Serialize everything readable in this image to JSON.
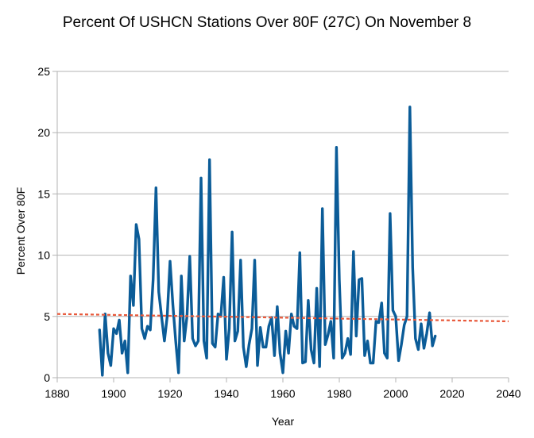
{
  "chart_data": {
    "type": "line",
    "title": "Percent Of USHCN Stations Over 80F (27C) On November 8",
    "xlabel": "Year",
    "ylabel": "Percent Over 80F",
    "xlim": [
      1880,
      2040
    ],
    "ylim": [
      0,
      25
    ],
    "x_ticks": [
      1880,
      1900,
      1920,
      1940,
      1960,
      1980,
      2000,
      2020,
      2040
    ],
    "y_ticks": [
      0,
      5,
      10,
      15,
      20,
      25
    ],
    "grid": "horizontal",
    "legend": "none",
    "series": [
      {
        "color": "#0b5c98",
        "x": [
          1895,
          1896,
          1897,
          1898,
          1899,
          1900,
          1901,
          1902,
          1903,
          1904,
          1905,
          1906,
          1907,
          1908,
          1909,
          1910,
          1911,
          1912,
          1913,
          1914,
          1915,
          1916,
          1917,
          1918,
          1919,
          1920,
          1921,
          1922,
          1923,
          1924,
          1925,
          1926,
          1927,
          1928,
          1929,
          1930,
          1931,
          1932,
          1933,
          1934,
          1935,
          1936,
          1937,
          1938,
          1939,
          1940,
          1941,
          1942,
          1943,
          1944,
          1945,
          1946,
          1947,
          1948,
          1949,
          1950,
          1951,
          1952,
          1953,
          1954,
          1955,
          1956,
          1957,
          1958,
          1959,
          1960,
          1961,
          1962,
          1963,
          1964,
          1965,
          1966,
          1967,
          1968,
          1969,
          1970,
          1971,
          1972,
          1973,
          1974,
          1975,
          1976,
          1977,
          1978,
          1979,
          1980,
          1981,
          1982,
          1983,
          1984,
          1985,
          1986,
          1987,
          1988,
          1989,
          1990,
          1991,
          1992,
          1993,
          1994,
          1995,
          1996,
          1997,
          1998,
          1999,
          2000,
          2001,
          2002,
          2003,
          2004,
          2005,
          2006,
          2007,
          2008,
          2009,
          2010,
          2011,
          2012,
          2013,
          2014
        ],
        "values": [
          3.9,
          0.2,
          5.2,
          2.0,
          1.0,
          4.0,
          3.6,
          4.7,
          2.0,
          3.0,
          0.4,
          8.3,
          5.9,
          12.5,
          11.3,
          4.0,
          3.2,
          4.2,
          3.9,
          8.0,
          15.5,
          7.0,
          5.0,
          3.0,
          5.0,
          9.5,
          6.0,
          3.0,
          0.4,
          8.3,
          3.0,
          5.0,
          9.9,
          3.2,
          2.6,
          3.0,
          16.3,
          3.0,
          1.6,
          17.8,
          2.8,
          2.5,
          5.2,
          5.0,
          8.2,
          1.5,
          4.0,
          11.9,
          3.0,
          3.8,
          9.6,
          2.5,
          0.9,
          2.7,
          4.0,
          9.6,
          1.0,
          4.1,
          2.5,
          2.5,
          4.2,
          4.9,
          1.8,
          5.8,
          2.0,
          0.4,
          3.8,
          2.0,
          5.2,
          4.2,
          4.0,
          10.2,
          1.2,
          1.3,
          6.3,
          2.3,
          1.2,
          7.3,
          0.9,
          13.8,
          2.7,
          3.5,
          4.6,
          1.6,
          18.8,
          8.0,
          1.6,
          2.0,
          3.2,
          1.9,
          10.3,
          3.4,
          8.0,
          8.1,
          1.8,
          3.0,
          1.2,
          1.2,
          4.6,
          4.5,
          6.1,
          2.0,
          1.6,
          13.4,
          5.5,
          5.0,
          1.4,
          2.7,
          4.3,
          5.0,
          22.1,
          9.0,
          3.2,
          2.3,
          4.4,
          2.4,
          3.6,
          5.3,
          2.6,
          3.4
        ]
      }
    ],
    "trendline": {
      "color": "#e8583a",
      "x": [
        1880,
        2040
      ],
      "values": [
        5.2,
        4.6
      ]
    }
  }
}
